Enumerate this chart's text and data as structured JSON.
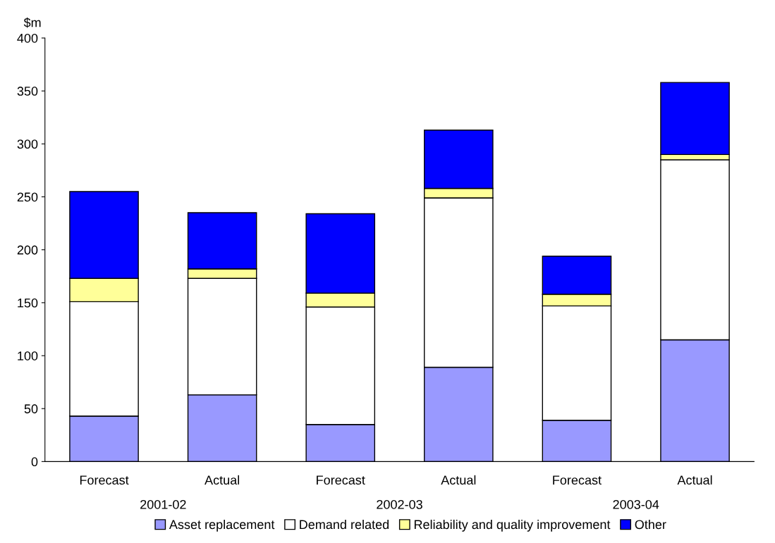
{
  "chart_data": {
    "type": "bar",
    "stacked": true,
    "ylabel": "$m",
    "categories": [
      "Forecast",
      "Actual",
      "Forecast",
      "Actual",
      "Forecast",
      "Actual"
    ],
    "annotations": [
      "2001-02",
      "2002-03",
      "2003-04"
    ],
    "series": [
      {
        "name": "Asset replacement",
        "color": "#9999ff",
        "values": [
          43,
          63,
          35,
          89,
          39,
          115
        ]
      },
      {
        "name": "Demand related",
        "color": "#ffffff",
        "values": [
          108,
          110,
          111,
          160,
          108,
          170
        ]
      },
      {
        "name": "Reliability and quality improvement",
        "color": "#ffff99",
        "values": [
          22,
          9,
          13,
          9,
          11,
          5
        ]
      },
      {
        "name": "Other",
        "color": "#0000ff",
        "values": [
          82,
          53,
          75,
          55,
          36,
          68
        ]
      }
    ],
    "ylim": [
      0,
      400
    ],
    "yticks": [
      0,
      50,
      100,
      150,
      200,
      250,
      300,
      350,
      400
    ],
    "grid": false,
    "legend": "bottom"
  }
}
